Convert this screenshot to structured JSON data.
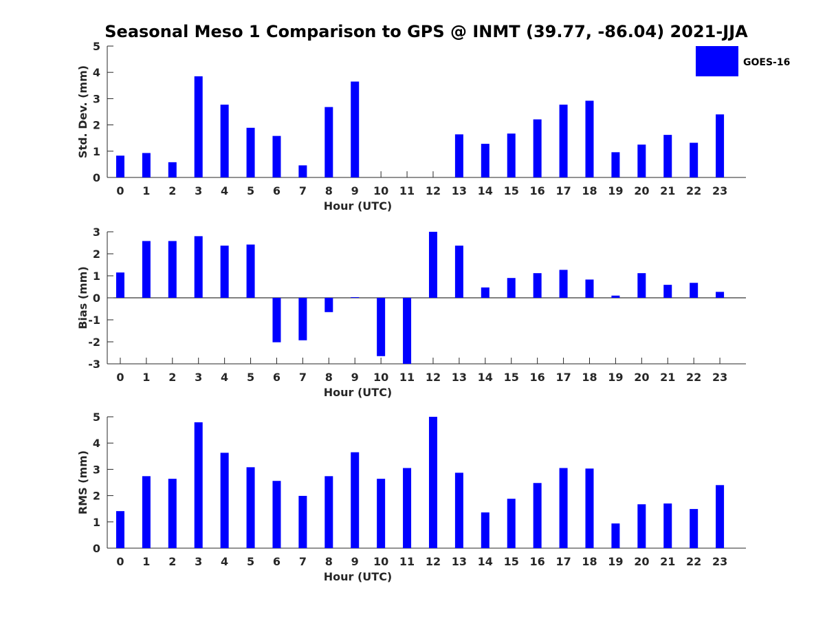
{
  "title": "Seasonal Meso 1 Comparison to GPS @ INMT (39.77, -86.04) 2021-JJA",
  "legend": {
    "label": "GOES-16",
    "color": "#0000ff",
    "position": "top-right"
  },
  "chart_data": [
    {
      "type": "bar",
      "name": "std-dev",
      "ylabel": "Std. Dev. (mm)",
      "xlabel": "Hour (UTC)",
      "ylim": [
        0,
        5
      ],
      "yticks": [
        0,
        1,
        2,
        3,
        4,
        5
      ],
      "categories": [
        "0",
        "1",
        "2",
        "3",
        "4",
        "5",
        "6",
        "7",
        "8",
        "9",
        "10",
        "11",
        "12",
        "13",
        "14",
        "15",
        "16",
        "17",
        "18",
        "19",
        "20",
        "21",
        "22",
        "23"
      ],
      "values": [
        0.83,
        0.93,
        0.58,
        3.85,
        2.77,
        1.89,
        1.58,
        0.46,
        2.68,
        3.65,
        null,
        null,
        null,
        1.64,
        1.28,
        1.67,
        2.21,
        2.77,
        2.92,
        0.96,
        1.25,
        1.62,
        1.32,
        2.4
      ],
      "series_name": "GOES-16"
    },
    {
      "type": "bar",
      "name": "bias",
      "ylabel": "Bias (mm)",
      "xlabel": "Hour (UTC)",
      "ylim": [
        -3,
        3
      ],
      "yticks": [
        -3,
        -2,
        -1,
        0,
        1,
        2,
        3
      ],
      "categories": [
        "0",
        "1",
        "2",
        "3",
        "4",
        "5",
        "6",
        "7",
        "8",
        "9",
        "10",
        "11",
        "12",
        "13",
        "14",
        "15",
        "16",
        "17",
        "18",
        "19",
        "20",
        "21",
        "22",
        "23"
      ],
      "values": [
        1.15,
        2.58,
        2.58,
        2.8,
        2.37,
        2.42,
        -2.02,
        -1.93,
        -0.65,
        0.03,
        -2.65,
        -3.0,
        3.0,
        2.37,
        0.47,
        0.9,
        1.12,
        1.27,
        0.83,
        0.1,
        1.12,
        0.59,
        0.68,
        0.27
      ],
      "series_name": "GOES-16"
    },
    {
      "type": "bar",
      "name": "rms",
      "ylabel": "RMS (mm)",
      "xlabel": "Hour (UTC)",
      "ylim": [
        0,
        5
      ],
      "yticks": [
        0,
        1,
        2,
        3,
        4,
        5
      ],
      "categories": [
        "0",
        "1",
        "2",
        "3",
        "4",
        "5",
        "6",
        "7",
        "8",
        "9",
        "10",
        "11",
        "12",
        "13",
        "14",
        "15",
        "16",
        "17",
        "18",
        "19",
        "20",
        "21",
        "22",
        "23"
      ],
      "values": [
        1.41,
        2.74,
        2.64,
        4.79,
        3.63,
        3.08,
        2.56,
        1.99,
        2.74,
        3.65,
        2.64,
        3.05,
        5.0,
        2.87,
        1.36,
        1.88,
        2.48,
        3.05,
        3.03,
        0.94,
        1.67,
        1.7,
        1.49,
        2.4
      ],
      "series_name": "GOES-16"
    }
  ]
}
